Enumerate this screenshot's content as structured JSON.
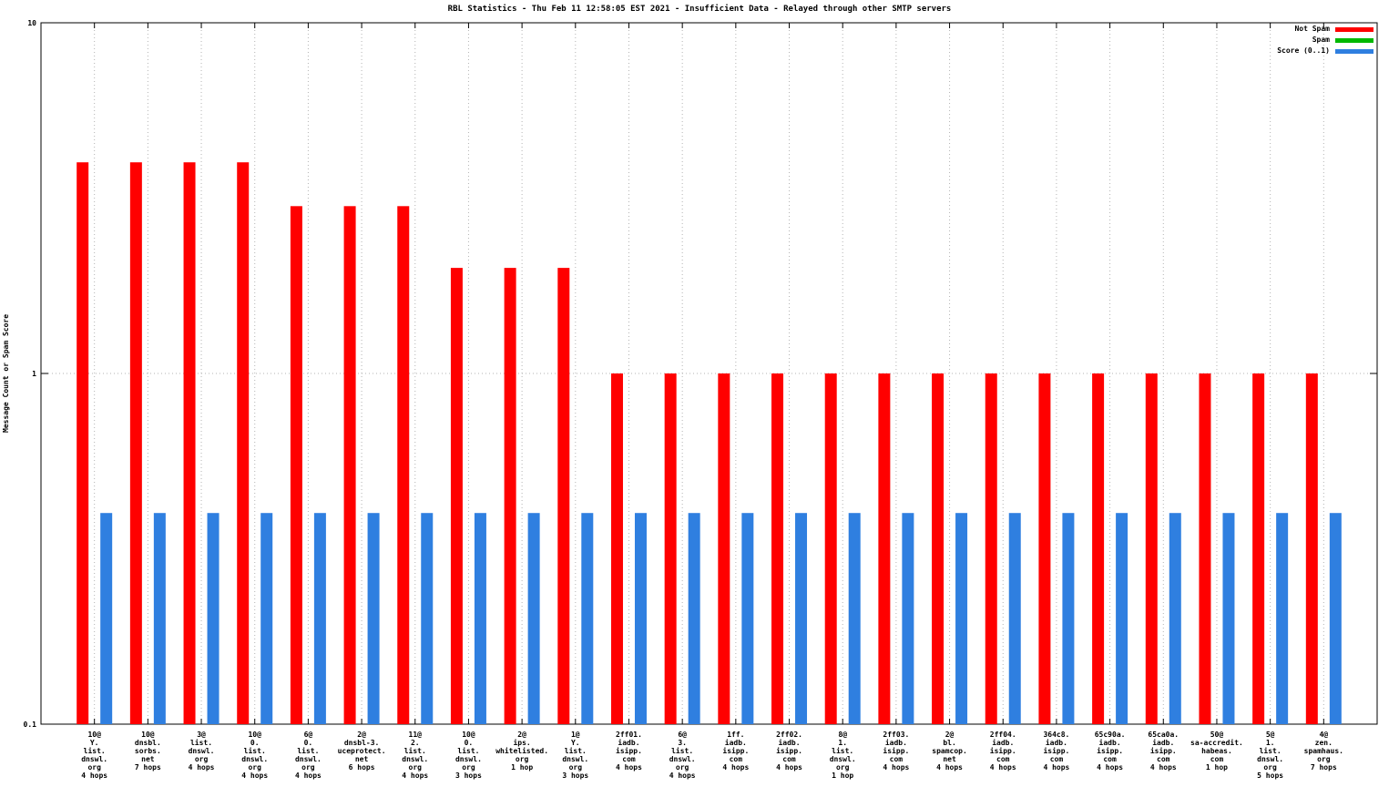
{
  "title": "RBL Statistics - Thu Feb 11 12:58:05 EST 2021 - Insufficient Data - Relayed through other SMTP servers",
  "ylabel": "Message Count or Spam Score",
  "legend": [
    {
      "label": "Not Spam",
      "color": "#ff0000"
    },
    {
      "label": "Spam",
      "color": "#00b800"
    },
    {
      "label": "Score (0..1)",
      "color": "#2f7fe0"
    }
  ],
  "chart_data": {
    "type": "bar",
    "y_scale": "log",
    "ylim": [
      0.1,
      10
    ],
    "yticks": [
      "0.1",
      "1",
      "10"
    ],
    "grid": "dotted",
    "legend_position": "top-right",
    "categories": [
      [
        "10@",
        "Y.",
        "list.",
        "dnswl.",
        "org",
        "4 hops"
      ],
      [
        "10@",
        "dnsbl.",
        "sorbs.",
        "net",
        "7 hops"
      ],
      [
        "3@",
        "list.",
        "dnswl.",
        "org",
        "4 hops"
      ],
      [
        "10@",
        "0.",
        "list.",
        "dnswl.",
        "org",
        "4 hops"
      ],
      [
        "6@",
        "0.",
        "list.",
        "dnswl.",
        "org",
        "4 hops"
      ],
      [
        "2@",
        "dnsbl-3.",
        "uceprotect.",
        "net",
        "6 hops"
      ],
      [
        "11@",
        "2.",
        "list.",
        "dnswl.",
        "org",
        "4 hops"
      ],
      [
        "10@",
        "0.",
        "list.",
        "dnswl.",
        "org",
        "3 hops"
      ],
      [
        "2@",
        "ips.",
        "whitelisted.",
        "org",
        "1 hop"
      ],
      [
        "1@",
        "Y.",
        "list.",
        "dnswl.",
        "org",
        "3 hops"
      ],
      [
        "2ff01.",
        "iadb.",
        "isipp.",
        "com",
        "4 hops"
      ],
      [
        "6@",
        "3.",
        "list.",
        "dnswl.",
        "org",
        "4 hops"
      ],
      [
        "1ff.",
        "iadb.",
        "isipp.",
        "com",
        "4 hops"
      ],
      [
        "2ff02.",
        "iadb.",
        "isipp.",
        "com",
        "4 hops"
      ],
      [
        "8@",
        "1.",
        "list.",
        "dnswl.",
        "org",
        "1 hop"
      ],
      [
        "2ff03.",
        "iadb.",
        "isipp.",
        "com",
        "4 hops"
      ],
      [
        "2@",
        "bl.",
        "spamcop.",
        "net",
        "4 hops"
      ],
      [
        "2ff04.",
        "iadb.",
        "isipp.",
        "com",
        "4 hops"
      ],
      [
        "364c8.",
        "iadb.",
        "isipp.",
        "com",
        "4 hops"
      ],
      [
        "65c90a.",
        "iadb.",
        "isipp.",
        "com",
        "4 hops"
      ],
      [
        "65ca0a.",
        "iadb.",
        "isipp.",
        "com",
        "4 hops"
      ],
      [
        "50@",
        "sa-accredit.",
        "habeas.",
        "com",
        "1 hop"
      ],
      [
        "5@",
        "1.",
        "list.",
        "dnswl.",
        "org",
        "5 hops"
      ],
      [
        "4@",
        "zen.",
        "spamhaus.",
        "org",
        "7 hops"
      ]
    ],
    "series": [
      {
        "name": "Not Spam",
        "color": "#ff0000",
        "values": [
          4,
          4,
          4,
          4,
          3,
          3,
          3,
          2,
          2,
          2,
          1,
          1,
          1,
          1,
          1,
          1,
          1,
          1,
          1,
          1,
          1,
          1,
          1,
          1
        ]
      },
      {
        "name": "Spam",
        "color": "#00b800",
        "values": [
          0,
          0,
          0,
          0,
          0,
          0,
          0,
          0,
          0,
          0,
          0,
          0,
          0,
          0,
          0,
          0,
          0,
          0,
          0,
          0,
          0,
          0,
          0,
          0
        ]
      },
      {
        "name": "Score (0..1)",
        "color": "#2f7fe0",
        "values": [
          0.4,
          0.4,
          0.4,
          0.4,
          0.4,
          0.4,
          0.4,
          0.4,
          0.4,
          0.4,
          0.4,
          0.4,
          0.4,
          0.4,
          0.4,
          0.4,
          0.4,
          0.4,
          0.4,
          0.4,
          0.4,
          0.4,
          0.4,
          0.4
        ]
      }
    ]
  }
}
